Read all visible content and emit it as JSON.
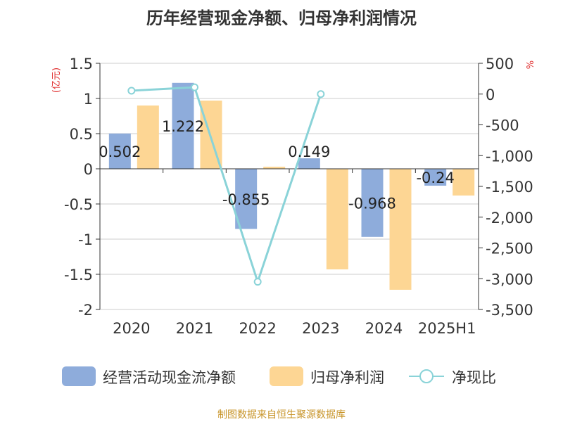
{
  "chart_data": {
    "type": "bar",
    "title": "历年经营现金净额、归母净利润情况",
    "left_axis_unit": "(亿元)",
    "right_axis_unit": "%",
    "categories": [
      "2020",
      "2021",
      "2022",
      "2023",
      "2024",
      "2025H1"
    ],
    "left_ylim": [
      -2,
      1.5
    ],
    "left_ticks": [
      "1.5",
      "1",
      "0.5",
      "0",
      "-0.5",
      "-1",
      "-1.5",
      "-2"
    ],
    "right_ylim": [
      -3500,
      500
    ],
    "right_ticks": [
      "500",
      "0",
      "-500",
      "-1,000",
      "-1,500",
      "-2,000",
      "-2,500",
      "-3,000",
      "-3,500"
    ],
    "series": [
      {
        "name": "经营活动现金流净额",
        "type": "bar",
        "axis": "left",
        "color": "#8eacdb",
        "values": [
          0.502,
          1.222,
          -0.855,
          0.149,
          -0.968,
          -0.24
        ],
        "labels": [
          "0.502",
          "1.222",
          "-0.855",
          "0.149",
          "-0.968",
          "-0.24"
        ]
      },
      {
        "name": "归母净利润",
        "type": "bar",
        "axis": "left",
        "color": "#fdd694",
        "values": [
          0.9,
          0.97,
          0.03,
          -1.43,
          -1.72,
          -0.38
        ]
      },
      {
        "name": "净现比",
        "type": "line",
        "axis": "right",
        "color": "#8ad3d8",
        "values": [
          55,
          110,
          -3050,
          0,
          null,
          null
        ]
      }
    ],
    "grid": true,
    "legend_position": "bottom"
  },
  "footer": {
    "source": "制图数据来自恒生聚源数据库"
  }
}
